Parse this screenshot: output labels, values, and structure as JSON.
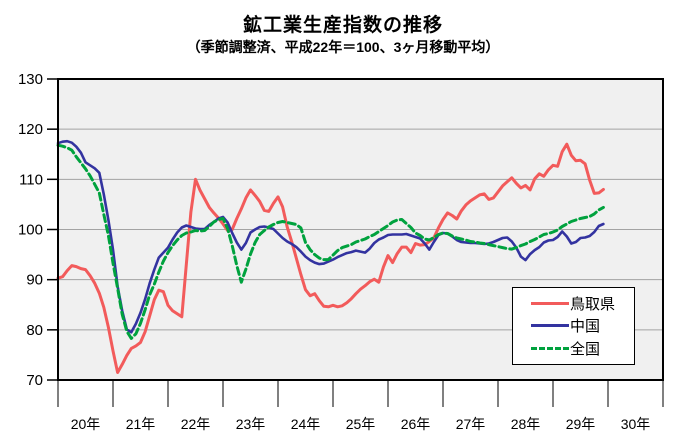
{
  "chart_data": {
    "type": "line",
    "title": "鉱工業生産指数の推移",
    "subtitle": "（季節調整済、平成22年＝100、3ヶ月移動平均）",
    "ylim": [
      70,
      130
    ],
    "y_ticks": [
      130,
      120,
      110,
      100,
      90,
      80,
      70
    ],
    "x_labels": [
      "20年",
      "21年",
      "22年",
      "23年",
      "24年",
      "25年",
      "26年",
      "27年",
      "28年",
      "29年",
      "30年"
    ],
    "x_unit": "month (平成20年1月〜平成29年12月, 12 points per year)",
    "grid": "horizontal",
    "plot_bg": "#f0f0f0",
    "grid_color": "#a3a3a3",
    "legend_position": "inside-bottom-right",
    "series": [
      {
        "id": "tottori",
        "name": "鳥取県",
        "color": "#f25b5b",
        "style": "solid",
        "values": [
          90.3,
          90.6,
          91.8,
          92.8,
          92.6,
          92.2,
          92.0,
          90.8,
          89.3,
          87.3,
          84.5,
          80.5,
          75.8,
          71.5,
          73.1,
          74.9,
          76.3,
          76.8,
          77.5,
          79.6,
          82.8,
          86.0,
          87.9,
          87.6,
          84.9,
          83.8,
          83.2,
          82.6,
          93.0,
          103.5,
          110.0,
          107.8,
          106.1,
          104.4,
          103.3,
          102.3,
          101.1,
          99.8,
          100.0,
          102.2,
          104.1,
          106.3,
          107.9,
          106.8,
          105.6,
          103.8,
          103.6,
          105.2,
          106.5,
          104.5,
          100.5,
          97.5,
          94.3,
          91.0,
          88.0,
          86.8,
          87.2,
          85.8,
          84.7,
          84.6,
          84.9,
          84.6,
          84.8,
          85.4,
          86.2,
          87.2,
          88.1,
          88.8,
          89.6,
          90.1,
          89.5,
          92.5,
          94.8,
          93.4,
          95.2,
          96.5,
          96.5,
          95.4,
          97.2,
          96.9,
          97.0,
          97.6,
          98.3,
          100.3,
          102.0,
          103.3,
          102.8,
          102.1,
          103.7,
          104.9,
          105.7,
          106.3,
          106.9,
          107.1,
          106.0,
          106.3,
          107.5,
          108.7,
          109.5,
          110.3,
          109.2,
          108.3,
          108.8,
          107.9,
          110.1,
          111.1,
          110.6,
          111.9,
          112.8,
          112.6,
          115.5,
          117.0,
          114.8,
          113.7,
          113.8,
          113.1,
          109.8,
          107.2,
          107.3,
          108.0
        ]
      },
      {
        "id": "chugoku",
        "name": "中国",
        "color": "#3333a0",
        "style": "solid",
        "values": [
          117.2,
          117.5,
          117.6,
          117.3,
          116.5,
          115.3,
          113.4,
          112.8,
          112.2,
          111.3,
          107.0,
          101.9,
          96.0,
          88.7,
          83.8,
          80.1,
          79.5,
          81.2,
          83.4,
          86.1,
          89.3,
          92.0,
          94.4,
          95.4,
          96.4,
          98.0,
          99.4,
          100.4,
          100.8,
          100.5,
          100.2,
          100.1,
          100.1,
          100.9,
          101.5,
          102.2,
          102.5,
          101.4,
          99.3,
          97.4,
          96.0,
          97.3,
          99.4,
          100.0,
          100.5,
          100.6,
          100.4,
          100.1,
          99.2,
          98.3,
          97.6,
          97.1,
          96.5,
          95.6,
          94.6,
          93.9,
          93.4,
          93.1,
          93.2,
          93.6,
          94.0,
          94.5,
          94.9,
          95.3,
          95.5,
          95.8,
          95.6,
          95.4,
          96.2,
          97.3,
          98.0,
          98.4,
          98.9,
          99.0,
          99.0,
          99.0,
          99.1,
          98.8,
          98.5,
          98.2,
          97.2,
          96.0,
          97.5,
          98.9,
          99.3,
          99.2,
          98.6,
          97.9,
          97.5,
          97.4,
          97.3,
          97.3,
          97.2,
          97.1,
          97.2,
          97.5,
          97.9,
          98.3,
          98.4,
          97.6,
          96.4,
          94.6,
          93.9,
          95.1,
          95.9,
          96.5,
          97.4,
          97.8,
          97.9,
          98.5,
          99.6,
          98.6,
          97.2,
          97.5,
          98.3,
          98.4,
          98.7,
          99.5,
          100.7,
          101.1
        ]
      },
      {
        "id": "zenkoku",
        "name": "全国",
        "color": "#00a23e",
        "style": "dashed",
        "values": [
          116.8,
          116.6,
          116.3,
          115.8,
          114.5,
          113.3,
          112.1,
          110.7,
          109.0,
          107.3,
          103.0,
          98.8,
          93.3,
          88.3,
          83.1,
          79.7,
          78.3,
          79.2,
          81.3,
          84.0,
          87.0,
          89.1,
          91.5,
          93.7,
          95.4,
          96.8,
          97.9,
          98.8,
          99.3,
          99.5,
          99.8,
          99.7,
          99.8,
          100.6,
          101.5,
          102.0,
          102.2,
          100.2,
          96.8,
          92.8,
          89.5,
          92.1,
          95.1,
          97.4,
          99.0,
          99.8,
          100.5,
          101.0,
          101.4,
          101.6,
          101.4,
          101.2,
          101.0,
          100.3,
          97.4,
          96.0,
          95.0,
          94.3,
          94.0,
          94.0,
          94.9,
          95.8,
          96.4,
          96.7,
          97.0,
          97.5,
          97.8,
          98.1,
          98.6,
          99.0,
          99.6,
          100.2,
          100.8,
          101.5,
          101.9,
          102.0,
          101.2,
          100.4,
          99.3,
          98.8,
          98.1,
          97.9,
          98.4,
          99.0,
          99.3,
          99.2,
          98.7,
          98.3,
          98.1,
          97.9,
          97.6,
          97.5,
          97.3,
          97.2,
          97.0,
          96.8,
          96.6,
          96.4,
          96.2,
          96.1,
          96.4,
          96.8,
          97.1,
          97.6,
          98.0,
          98.5,
          99.0,
          99.2,
          99.5,
          99.9,
          100.6,
          101.1,
          101.6,
          101.9,
          102.2,
          102.4,
          102.6,
          103.1,
          103.9,
          104.4
        ]
      }
    ]
  }
}
